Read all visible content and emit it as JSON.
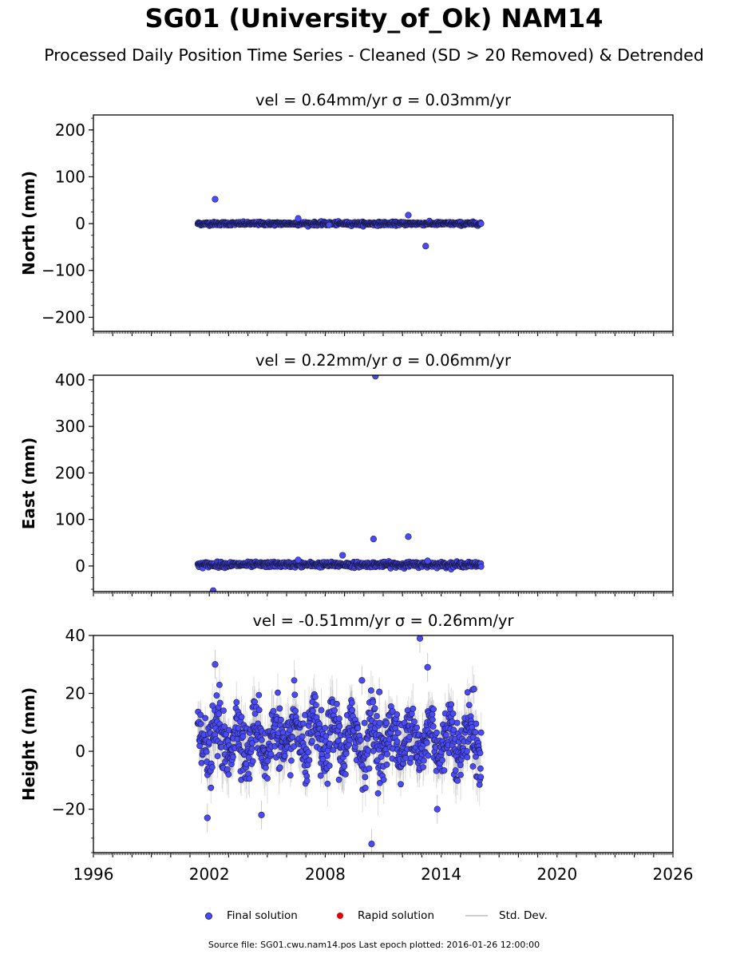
{
  "figure": {
    "title": "SG01 (University_of_Ok) NAM14",
    "subtitle": "Processed Daily Position Time Series - Cleaned (SD > 20 Removed) & Detrended",
    "source_prefix": "Source file: SG01.cwu.nam14.pos  Last epoch plotted: 2016-01-26 12:00:00"
  },
  "legend": {
    "final": "Final solution",
    "rapid": "Rapid solution",
    "sd": "Std. Dev."
  },
  "colors": {
    "final_fill": "#4b4bf5",
    "final_edge": "#1a1a4d",
    "rapid": "#e00000",
    "std_dev": "#9a9a9a"
  },
  "chart_data": [
    {
      "type": "scatter",
      "panel_title": "vel = 0.64mm/yr   σ = 0.03mm/yr",
      "ylabel": "North (mm)",
      "xlim": [
        1996,
        2026
      ],
      "ylim": [
        -230,
        232
      ],
      "yticks": [
        -200,
        -100,
        0,
        100,
        200
      ],
      "ytick_labels": [
        "−200",
        "−100",
        "0",
        "100",
        "200"
      ],
      "data_start": 2001.4,
      "data_end": 2016.07,
      "typical_range": [
        -4,
        4
      ],
      "outliers": [
        {
          "x": 2002.3,
          "y": 52
        },
        {
          "x": 2006.6,
          "y": 11
        },
        {
          "x": 2012.3,
          "y": 18
        },
        {
          "x": 2013.2,
          "y": -48
        },
        {
          "x": 2008.2,
          "y": -3
        }
      ]
    },
    {
      "type": "scatter",
      "panel_title": "vel = 0.22mm/yr   σ = 0.06mm/yr",
      "ylabel": "East (mm)",
      "xlim": [
        1996,
        2026
      ],
      "ylim": [
        -55,
        410
      ],
      "yticks": [
        0,
        100,
        200,
        300,
        400
      ],
      "ytick_labels": [
        "0",
        "100",
        "200",
        "300",
        "400"
      ],
      "data_start": 2001.4,
      "data_end": 2016.07,
      "typical_range": [
        -3,
        9
      ],
      "outliers": [
        {
          "x": 2010.6,
          "y": 408
        },
        {
          "x": 2010.5,
          "y": 58
        },
        {
          "x": 2012.3,
          "y": 63
        },
        {
          "x": 2008.9,
          "y": 23
        },
        {
          "x": 2006.6,
          "y": 13
        },
        {
          "x": 2002.2,
          "y": -53
        },
        {
          "x": 2013.3,
          "y": 11
        }
      ]
    },
    {
      "type": "scatter",
      "panel_title": "vel = -0.51mm/yr   σ = 0.26mm/yr",
      "ylabel": "Height (mm)",
      "xlim": [
        1996,
        2026
      ],
      "ylim": [
        -35,
        40
      ],
      "yticks": [
        -20,
        0,
        20,
        40
      ],
      "ytick_labels": [
        "−20",
        "0",
        "20",
        "40"
      ],
      "data_start": 2001.4,
      "data_end": 2016.07,
      "typical_range": [
        -12,
        22
      ],
      "outliers": [
        {
          "x": 2012.9,
          "y": 39
        },
        {
          "x": 2002.3,
          "y": 30
        },
        {
          "x": 2013.3,
          "y": 29
        },
        {
          "x": 2010.4,
          "y": -32
        },
        {
          "x": 2001.9,
          "y": -23
        },
        {
          "x": 2004.7,
          "y": -22
        },
        {
          "x": 2009.9,
          "y": 24.5
        },
        {
          "x": 2010.8,
          "y": 20.5
        },
        {
          "x": 2015.7,
          "y": 21.5
        },
        {
          "x": 2013.8,
          "y": -20
        }
      ]
    }
  ],
  "x_axis": {
    "ticks": [
      1996,
      2002,
      2008,
      2014,
      2020,
      2026
    ],
    "tick_labels": [
      "1996",
      "2002",
      "2008",
      "2014",
      "2020",
      "2026"
    ]
  }
}
